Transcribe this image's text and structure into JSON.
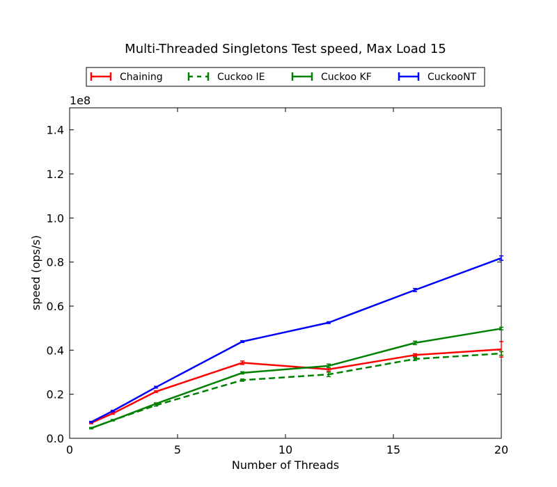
{
  "chart_data": {
    "type": "line",
    "title": "Multi-Threaded Singletons Test speed, Max Load 15",
    "xlabel": "Number of Threads",
    "ylabel": "speed (ops/s)",
    "y_scale_label": "1e8",
    "xlim": [
      0,
      20
    ],
    "ylim": [
      0,
      1.5
    ],
    "x_ticks": [
      0,
      5,
      10,
      15,
      20
    ],
    "x_tick_labels": [
      "0",
      "5",
      "10",
      "15",
      "20"
    ],
    "y_ticks": [
      0,
      0.2,
      0.4,
      0.6,
      0.8,
      1.0,
      1.2,
      1.4
    ],
    "y_tick_labels": [
      "0.0",
      "0.2",
      "0.4",
      "0.6",
      "0.8",
      "1.0",
      "1.2",
      "1.4"
    ],
    "grid": false,
    "legend_position": "top-center",
    "x": [
      1,
      2,
      4,
      8,
      12,
      16,
      20
    ],
    "series": [
      {
        "name": "Chaining",
        "color": "#ff0000",
        "dash": "solid",
        "values": [
          0.07,
          0.113,
          0.212,
          0.343,
          0.313,
          0.378,
          0.404
        ],
        "errors": [
          0.004,
          0.004,
          0.004,
          0.008,
          0.008,
          0.006,
          0.035
        ]
      },
      {
        "name": "Cuckoo IE",
        "color": "#008000",
        "dash": "dashed",
        "values": [
          0.046,
          0.082,
          0.15,
          0.264,
          0.29,
          0.36,
          0.385
        ],
        "errors": [
          0.003,
          0.003,
          0.004,
          0.005,
          0.01,
          0.007,
          0.008
        ]
      },
      {
        "name": "Cuckoo KF",
        "color": "#008000",
        "dash": "solid",
        "values": [
          0.046,
          0.082,
          0.157,
          0.297,
          0.329,
          0.433,
          0.498
        ],
        "errors": [
          0.003,
          0.003,
          0.004,
          0.005,
          0.008,
          0.008,
          0.006
        ]
      },
      {
        "name": "CuckooNT",
        "color": "#0000ff",
        "dash": "solid",
        "values": [
          0.074,
          0.124,
          0.232,
          0.439,
          0.525,
          0.673,
          0.818
        ],
        "errors": [
          0.003,
          0.003,
          0.004,
          0.004,
          0.004,
          0.007,
          0.01
        ]
      }
    ]
  }
}
